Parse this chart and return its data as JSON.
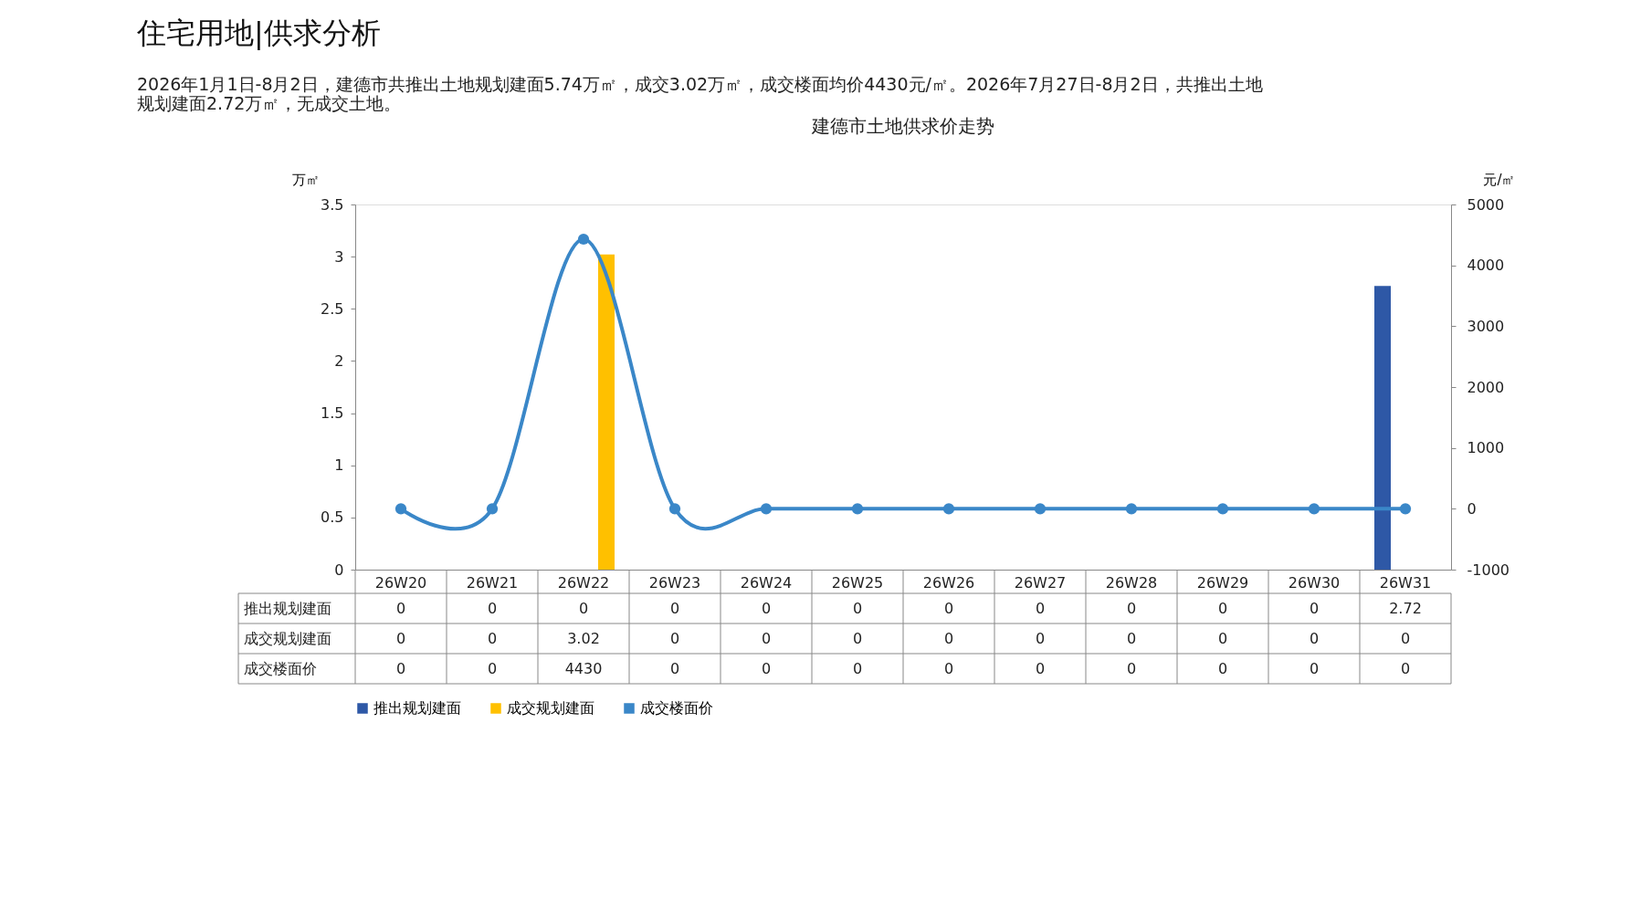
{
  "chart_data": {
    "type": "bar",
    "title": "建德市土地供求价走势",
    "subtitle": "住宅用地|供求分析",
    "annotations": [
      "2026年1月1日-8月2日，建德市共推出土地规划建面5.74万㎡，成交3.02万㎡，成交楼面均价4430元/㎡。2026年7月27日-8月2日，共推出土地规划建面2.72万㎡，无成交土地。"
    ],
    "ylabel": "万㎡",
    "y2label": "元/㎡",
    "categories": [
      "26W20",
      "26W21",
      "26W22",
      "26W23",
      "26W24",
      "26W25",
      "26W26",
      "26W27",
      "26W28",
      "26W29",
      "26W30",
      "26W31"
    ],
    "series": [
      {
        "name": "推出规划建面",
        "color": "#2e58a6",
        "values": [
          0,
          0,
          0,
          0,
          0,
          0,
          0,
          0,
          0,
          0,
          0,
          2.72
        ]
      },
      {
        "name": "成交规划建面",
        "color": "#ffc000",
        "values": [
          0,
          0,
          3.02,
          0,
          0,
          0,
          0,
          0,
          0,
          0,
          0,
          0
        ]
      },
      {
        "name": "成交楼面价",
        "color": "#3a87c8",
        "type": "line",
        "axis": "y2",
        "values": [
          0,
          0,
          4430,
          0,
          0,
          0,
          0,
          0,
          0,
          0,
          0,
          0
        ]
      }
    ],
    "ylim": [
      0,
      3.5
    ],
    "yticks": [
      0,
      0.5,
      1,
      1.5,
      2,
      2.5,
      3,
      3.5
    ],
    "y2lim": [
      -1000,
      5000
    ],
    "y2ticks": [
      -1000,
      0,
      1000,
      2000,
      3000,
      4000,
      5000
    ],
    "data_labels": true,
    "grid": false,
    "legend": "bottom",
    "marker": "circle"
  }
}
